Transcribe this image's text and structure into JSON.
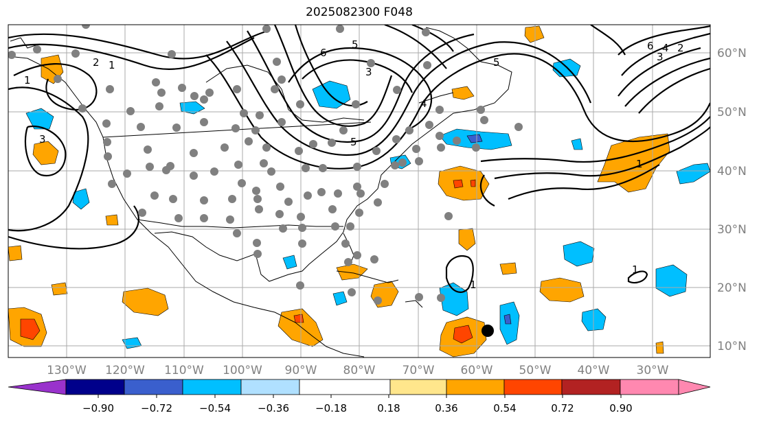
{
  "title": "2025082300 F048",
  "lon_labels": [
    "130°W",
    "120°W",
    "110°W",
    "100°W",
    "90°W",
    "80°W",
    "70°W",
    "60°W",
    "50°W",
    "40°W",
    "30°W"
  ],
  "lat_labels": [
    "60°N",
    "50°N",
    "40°N",
    "30°N",
    "20°N",
    "10°N"
  ],
  "colorbar": {
    "colors": [
      "#9932cc",
      "#00008b",
      "#3a5fcd",
      "#00bfff",
      "#b0e0ff",
      "#ffffff",
      "#ffe68c",
      "#ffa500",
      "#ff4500",
      "#b22222",
      "#ff88b0"
    ],
    "ticks": [
      "−0.90",
      "−0.72",
      "−0.54",
      "−0.36",
      "−0.18",
      "0.18",
      "0.36",
      "0.54",
      "0.72",
      "0.90"
    ]
  },
  "contour_labels": [
    "6",
    "5",
    "3",
    "2",
    "1",
    "1",
    "3",
    "4",
    "6",
    "5",
    "3",
    "4",
    "2",
    "1",
    "1",
    "1",
    "5"
  ],
  "colors": {
    "contour": "#000000",
    "station": "#808080",
    "grid": "#aaaaaa",
    "land_outline": "#000000"
  }
}
